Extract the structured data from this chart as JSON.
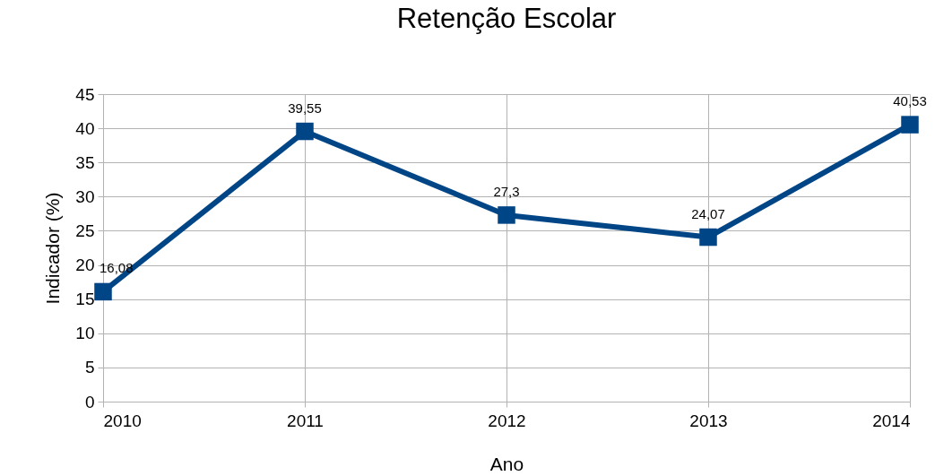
{
  "chart_data": {
    "type": "line",
    "title": "Retenção Escolar",
    "xlabel": "Ano",
    "ylabel": "Indicador (%)",
    "x": [
      2010,
      2011,
      2012,
      2013,
      2014
    ],
    "series": [
      {
        "color": "#004586",
        "values": [
          16.08,
          39.55,
          27.3,
          24.07,
          40.53
        ],
        "value_labels": [
          "16,08",
          "39,55",
          "27,3",
          "24,07",
          "40,53"
        ]
      }
    ],
    "xlim": [
      2010,
      2014
    ],
    "xticks": [
      2010,
      2011,
      2012,
      2013,
      2014
    ],
    "ylim": [
      0,
      45
    ],
    "yticks": [
      0,
      5,
      10,
      15,
      20,
      25,
      30,
      35,
      40,
      45
    ],
    "grid": true,
    "marker": "square",
    "line_style": "solid"
  }
}
